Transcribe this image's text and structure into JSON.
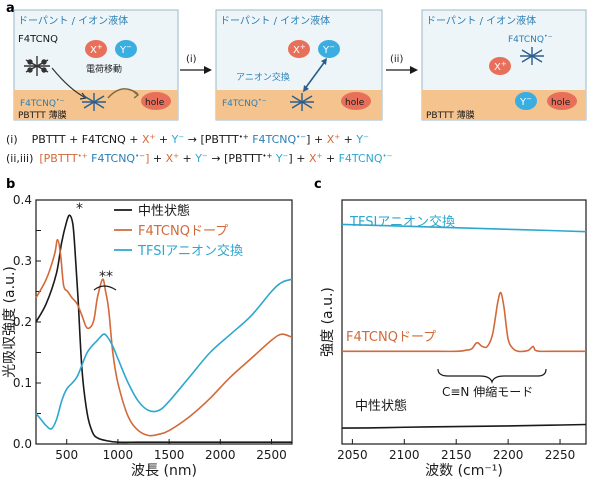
{
  "panel_a": {
    "label": "a",
    "box_title": "ドーパント / イオン液体",
    "box1": {
      "dopant": "F4TCNQ",
      "x_ion": "X",
      "x_sup": "+",
      "y_ion": "Y",
      "y_sup": "−",
      "transfer": "電荷移動",
      "f4tcnq_minus": "F4TCNQ",
      "minus_sup": "•−",
      "hole": "hole",
      "film": "PBTTT 薄膜"
    },
    "arrow1": "(i)",
    "box2": {
      "x_ion": "X",
      "x_sup": "+",
      "y_ion": "Y",
      "y_sup": "−",
      "exchange": "アニオン交換",
      "f4tcnq_minus": "F4TCNQ",
      "minus_sup": "•−",
      "hole": "hole"
    },
    "arrow2": "(ii)",
    "box3": {
      "f4tcnq_minus": "F4TCNQ",
      "minus_sup": "•−",
      "x_ion": "X",
      "x_sup": "+",
      "y_ion": "Y",
      "y_sup": "−",
      "hole": "hole",
      "film": "PBTTT 薄膜"
    },
    "eq1": {
      "num": "(i)",
      "p1": "PBTTT + F4TCNQ + ",
      "x": "X",
      "xs": "+",
      "plus": " + ",
      "y": "Y",
      "ys": "−",
      "arrow": " → ",
      "b1": "[PBTTT",
      "b1s": "•+",
      "b2": " F4TCNQ",
      "b2s": "•−",
      "b3": "]",
      "p2": " + ",
      "x2": "X",
      "x2s": "+",
      "p3": " + ",
      "y2": "Y",
      "y2s": "−"
    },
    "eq2": {
      "num": "(ii,iii)",
      "b1": "[PBTTT",
      "b1s": "•+",
      "b2": " F4TCNQ",
      "b2s": "•−",
      "b3": "]",
      "p1": " + ",
      "x": "X",
      "xs": "+",
      "plus": " + ",
      "y": "Y",
      "ys": "−",
      "arrow": " → ",
      "c1": "[PBTTT",
      "c1s": "•+",
      "c2": " Y",
      "c2s": "−",
      "c3": "]",
      "p2": " + ",
      "x2": "X",
      "x2s": "+",
      "p3": " + ",
      "f": "F4TCNQ",
      "fs": "•−"
    }
  },
  "colors": {
    "black": "#1a1a1a",
    "orange": "#d2693a",
    "blue": "#2ea7cf",
    "film": "#f5c38e",
    "box_fill": "#eef5f9",
    "box_title": "#2a7fb5"
  },
  "panel_b": {
    "label": "b",
    "peak1": "*",
    "peak2": "**"
  },
  "panel_c": {
    "label": "c",
    "bracket_label": "C≡N 伸縮モード",
    "label_tfsi": "TFSIアニオン交換",
    "label_f4": "F4TCNQドープ",
    "label_neutral": "中性状態"
  },
  "chart_data": [
    {
      "type": "line",
      "xlabel": "波長 (nm)",
      "ylabel": "光吸収強度 (a.u.)",
      "xlim": [
        200,
        2700
      ],
      "ylim": [
        0,
        0.4
      ],
      "xticks": [
        500,
        1000,
        1500,
        2000,
        2500
      ],
      "yticks": [
        0.0,
        0.05,
        0.1,
        0.15,
        0.2,
        0.25,
        0.3,
        0.35,
        0.4
      ],
      "ytick_labels": [
        "0.0",
        "",
        "0.1",
        "",
        "0.2",
        "",
        "0.3",
        "",
        "0.4"
      ],
      "legend": "top-right",
      "series": [
        {
          "name": "中性状態",
          "color": "#1a1a1a",
          "x": [
            200,
            300,
            400,
            450,
            500,
            530,
            560,
            580,
            610,
            650,
            700,
            750,
            800,
            900,
            1000,
            1200,
            1500,
            2000,
            2500,
            2700
          ],
          "y": [
            0.2,
            0.23,
            0.28,
            0.33,
            0.365,
            0.375,
            0.36,
            0.32,
            0.24,
            0.12,
            0.05,
            0.02,
            0.01,
            0.005,
            0.003,
            0.003,
            0.003,
            0.003,
            0.003,
            0.003
          ]
        },
        {
          "name": "F4TCNQドープ",
          "color": "#d2693a",
          "x": [
            200,
            300,
            380,
            410,
            440,
            470,
            510,
            550,
            600,
            650,
            700,
            760,
            800,
            850,
            880,
            910,
            950,
            1000,
            1100,
            1200,
            1300,
            1400,
            1500,
            1700,
            1900,
            2100,
            2300,
            2500,
            2600,
            2700
          ],
          "y": [
            0.24,
            0.27,
            0.31,
            0.335,
            0.31,
            0.26,
            0.25,
            0.24,
            0.23,
            0.21,
            0.19,
            0.2,
            0.24,
            0.27,
            0.25,
            0.22,
            0.15,
            0.1,
            0.045,
            0.022,
            0.014,
            0.016,
            0.022,
            0.045,
            0.075,
            0.11,
            0.14,
            0.17,
            0.18,
            0.175
          ]
        },
        {
          "name": "TFSIアニオン交換",
          "color": "#2ea7cf",
          "x": [
            200,
            250,
            300,
            350,
            400,
            450,
            500,
            600,
            700,
            800,
            860,
            900,
            950,
            1000,
            1100,
            1200,
            1300,
            1400,
            1500,
            1700,
            1900,
            2100,
            2300,
            2500,
            2600,
            2700
          ],
          "y": [
            0.05,
            0.04,
            0.03,
            0.025,
            0.04,
            0.07,
            0.09,
            0.11,
            0.15,
            0.17,
            0.18,
            0.175,
            0.16,
            0.14,
            0.1,
            0.07,
            0.055,
            0.055,
            0.07,
            0.11,
            0.15,
            0.18,
            0.21,
            0.25,
            0.265,
            0.27
          ]
        }
      ]
    },
    {
      "type": "line",
      "xlabel": "波数 (cm⁻¹)",
      "ylabel": "強度 (a.u.)",
      "xlim": [
        2040,
        2275
      ],
      "xticks": [
        2050,
        2100,
        2150,
        2200,
        2250
      ],
      "yticks": [],
      "series": [
        {
          "name": "TFSIアニオン交換",
          "color": "#2ea7cf",
          "x": [
            2040,
            2080,
            2120,
            2160,
            2200,
            2240,
            2275
          ],
          "y": [
            0.9,
            0.895,
            0.89,
            0.885,
            0.88,
            0.875,
            0.87
          ]
        },
        {
          "name": "F4TCNQドープ",
          "color": "#d2693a",
          "x": [
            2040,
            2080,
            2120,
            2150,
            2160,
            2165,
            2170,
            2175,
            2180,
            2185,
            2190,
            2193,
            2196,
            2200,
            2205,
            2210,
            2215,
            2220,
            2224,
            2226,
            2230,
            2240,
            2275
          ],
          "y": [
            0.38,
            0.38,
            0.38,
            0.38,
            0.385,
            0.39,
            0.415,
            0.4,
            0.4,
            0.45,
            0.58,
            0.62,
            0.56,
            0.43,
            0.39,
            0.38,
            0.38,
            0.385,
            0.4,
            0.385,
            0.38,
            0.38,
            0.38
          ]
        },
        {
          "name": "中性状態",
          "color": "#1a1a1a",
          "x": [
            2040,
            2080,
            2120,
            2160,
            2200,
            2240,
            2275
          ],
          "y": [
            0.065,
            0.067,
            0.07,
            0.072,
            0.074,
            0.077,
            0.08
          ]
        }
      ]
    }
  ]
}
